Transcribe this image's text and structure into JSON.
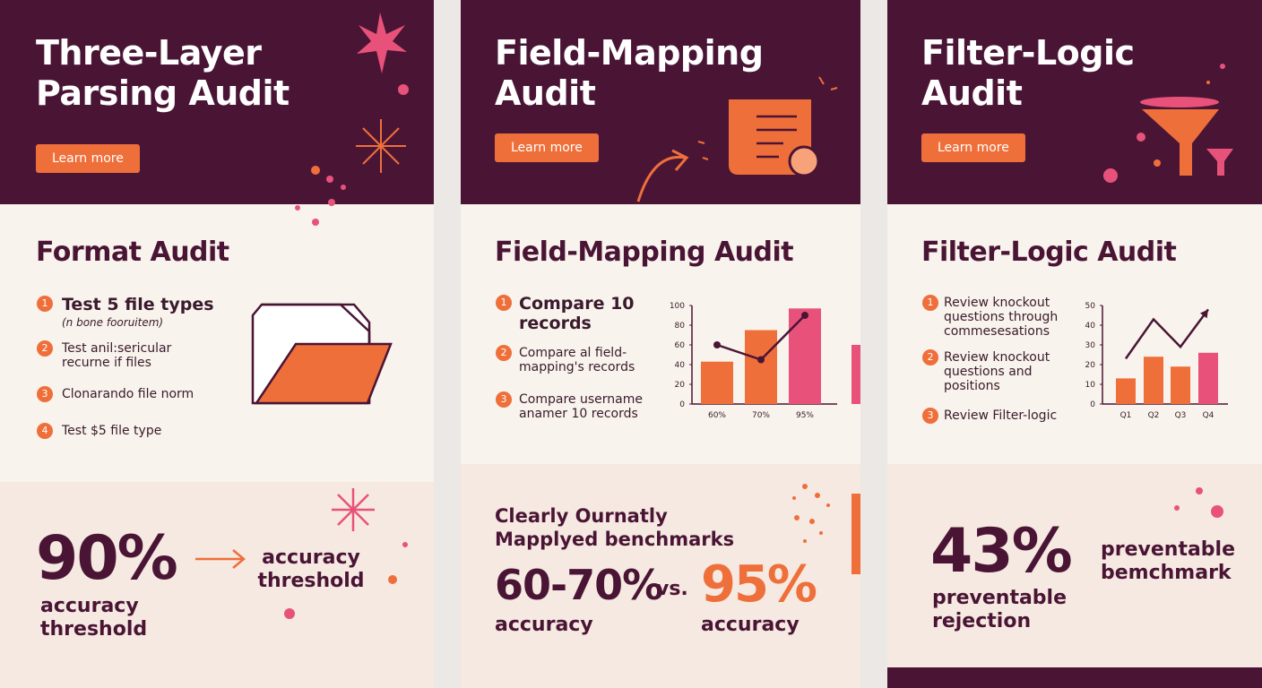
{
  "panels": [
    {
      "header": {
        "title": "Three-Layer Parsing Audit",
        "button": "Learn more"
      },
      "section": {
        "title": "Format Audit",
        "items": [
          {
            "n": "1",
            "text": "Test 5 file types",
            "sub": "(n bone fooruitem)"
          },
          {
            "n": "2",
            "text": "Test anil:sericular recurne if files"
          },
          {
            "n": "3",
            "text": "Clonarando file norm"
          },
          {
            "n": "4",
            "text": "Test $5 file type"
          }
        ]
      },
      "stat": {
        "value": "90%",
        "caption": "accuracy threshold",
        "side": "accuracy threshold"
      }
    },
    {
      "header": {
        "title": "Field-Mapping Audit",
        "button": "Learn more"
      },
      "section": {
        "title": "Field-Mapping Audit",
        "items": [
          {
            "n": "1",
            "text": "Compare 10 records"
          },
          {
            "n": "2",
            "text": "Compare al field-mapping's records"
          },
          {
            "n": "3",
            "text": "Compare username anamer 10 records"
          }
        ],
        "chart": {
          "type": "bar",
          "categories": [
            "60%",
            "70%",
            "95%"
          ],
          "values": [
            43,
            75,
            97
          ],
          "colors": [
            "#ef6f3a",
            "#ef6f3a",
            "#e8527a"
          ],
          "line": [
            60,
            45,
            90
          ],
          "line_color": "#4a1535",
          "ylim": [
            0,
            100
          ],
          "yticks": [
            0,
            20,
            40,
            60,
            80,
            100
          ]
        }
      },
      "stat": {
        "heading": "Clearly Ournatly Mapplyed benchmarks",
        "left": "60-70%",
        "vs": "vs.",
        "right": "95%",
        "left_caption": "accuracy",
        "right_caption": "accuracy"
      }
    },
    {
      "header": {
        "title": "Filter-Logic Audit",
        "button": "Learn more"
      },
      "section": {
        "title": "Filter-Logic Audit",
        "items": [
          {
            "n": "1",
            "text": "Review knockout questions through commesesations"
          },
          {
            "n": "2",
            "text": "Review knockout questions and positions"
          },
          {
            "n": "3",
            "text": "Review Filter-logic"
          }
        ],
        "chart": {
          "type": "bar",
          "categories": [
            "Q1",
            "Q2",
            "Q3",
            "Q4"
          ],
          "values": [
            13,
            24,
            19,
            26
          ],
          "colors": [
            "#ef6f3a",
            "#ef6f3a",
            "#ef6f3a",
            "#e8527a"
          ],
          "line": [
            23,
            43,
            29,
            48
          ],
          "line_color": "#4a1535",
          "ylim": [
            0,
            50
          ],
          "yticks": [
            0,
            10,
            20,
            30,
            40,
            50
          ]
        }
      },
      "stat": {
        "value": "43%",
        "caption": "preventable rejection",
        "side": "preventable bemchmark"
      }
    }
  ]
}
